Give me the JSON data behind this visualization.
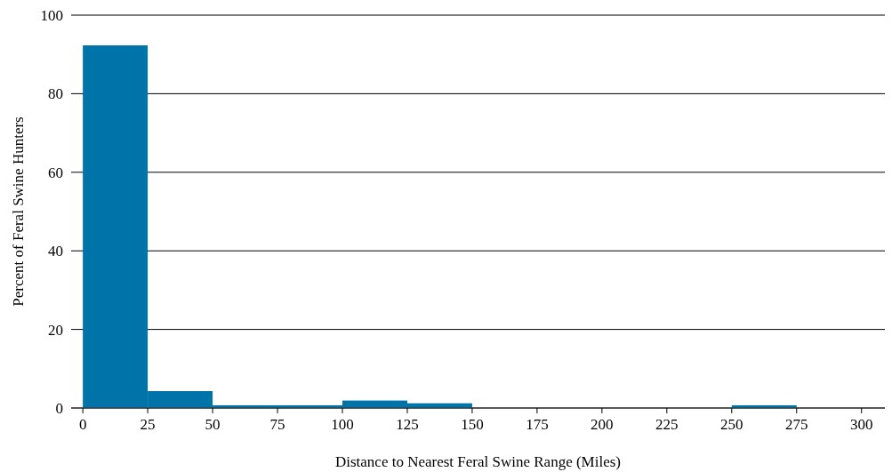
{
  "chart_data": {
    "type": "histogram",
    "xlabel": "Distance to Nearest Feral Swine Range (Miles)",
    "ylabel": "Percent of Feral Swine Hunters",
    "bins": [
      0,
      25,
      50,
      75,
      100,
      125,
      150,
      175,
      200,
      225,
      250,
      275,
      300
    ],
    "values": [
      92.3,
      4.3,
      0.7,
      0.7,
      1.9,
      1.2,
      0,
      0,
      0,
      0,
      0.7,
      0
    ],
    "color": "#0073a8",
    "xlim": [
      -4.5,
      309
    ],
    "xticks": [
      0,
      25,
      50,
      75,
      100,
      125,
      150,
      175,
      200,
      225,
      250,
      275,
      300
    ],
    "ylim": [
      0,
      100
    ],
    "yticks": [
      0,
      20,
      40,
      60,
      80,
      100
    ],
    "grid": "y"
  }
}
